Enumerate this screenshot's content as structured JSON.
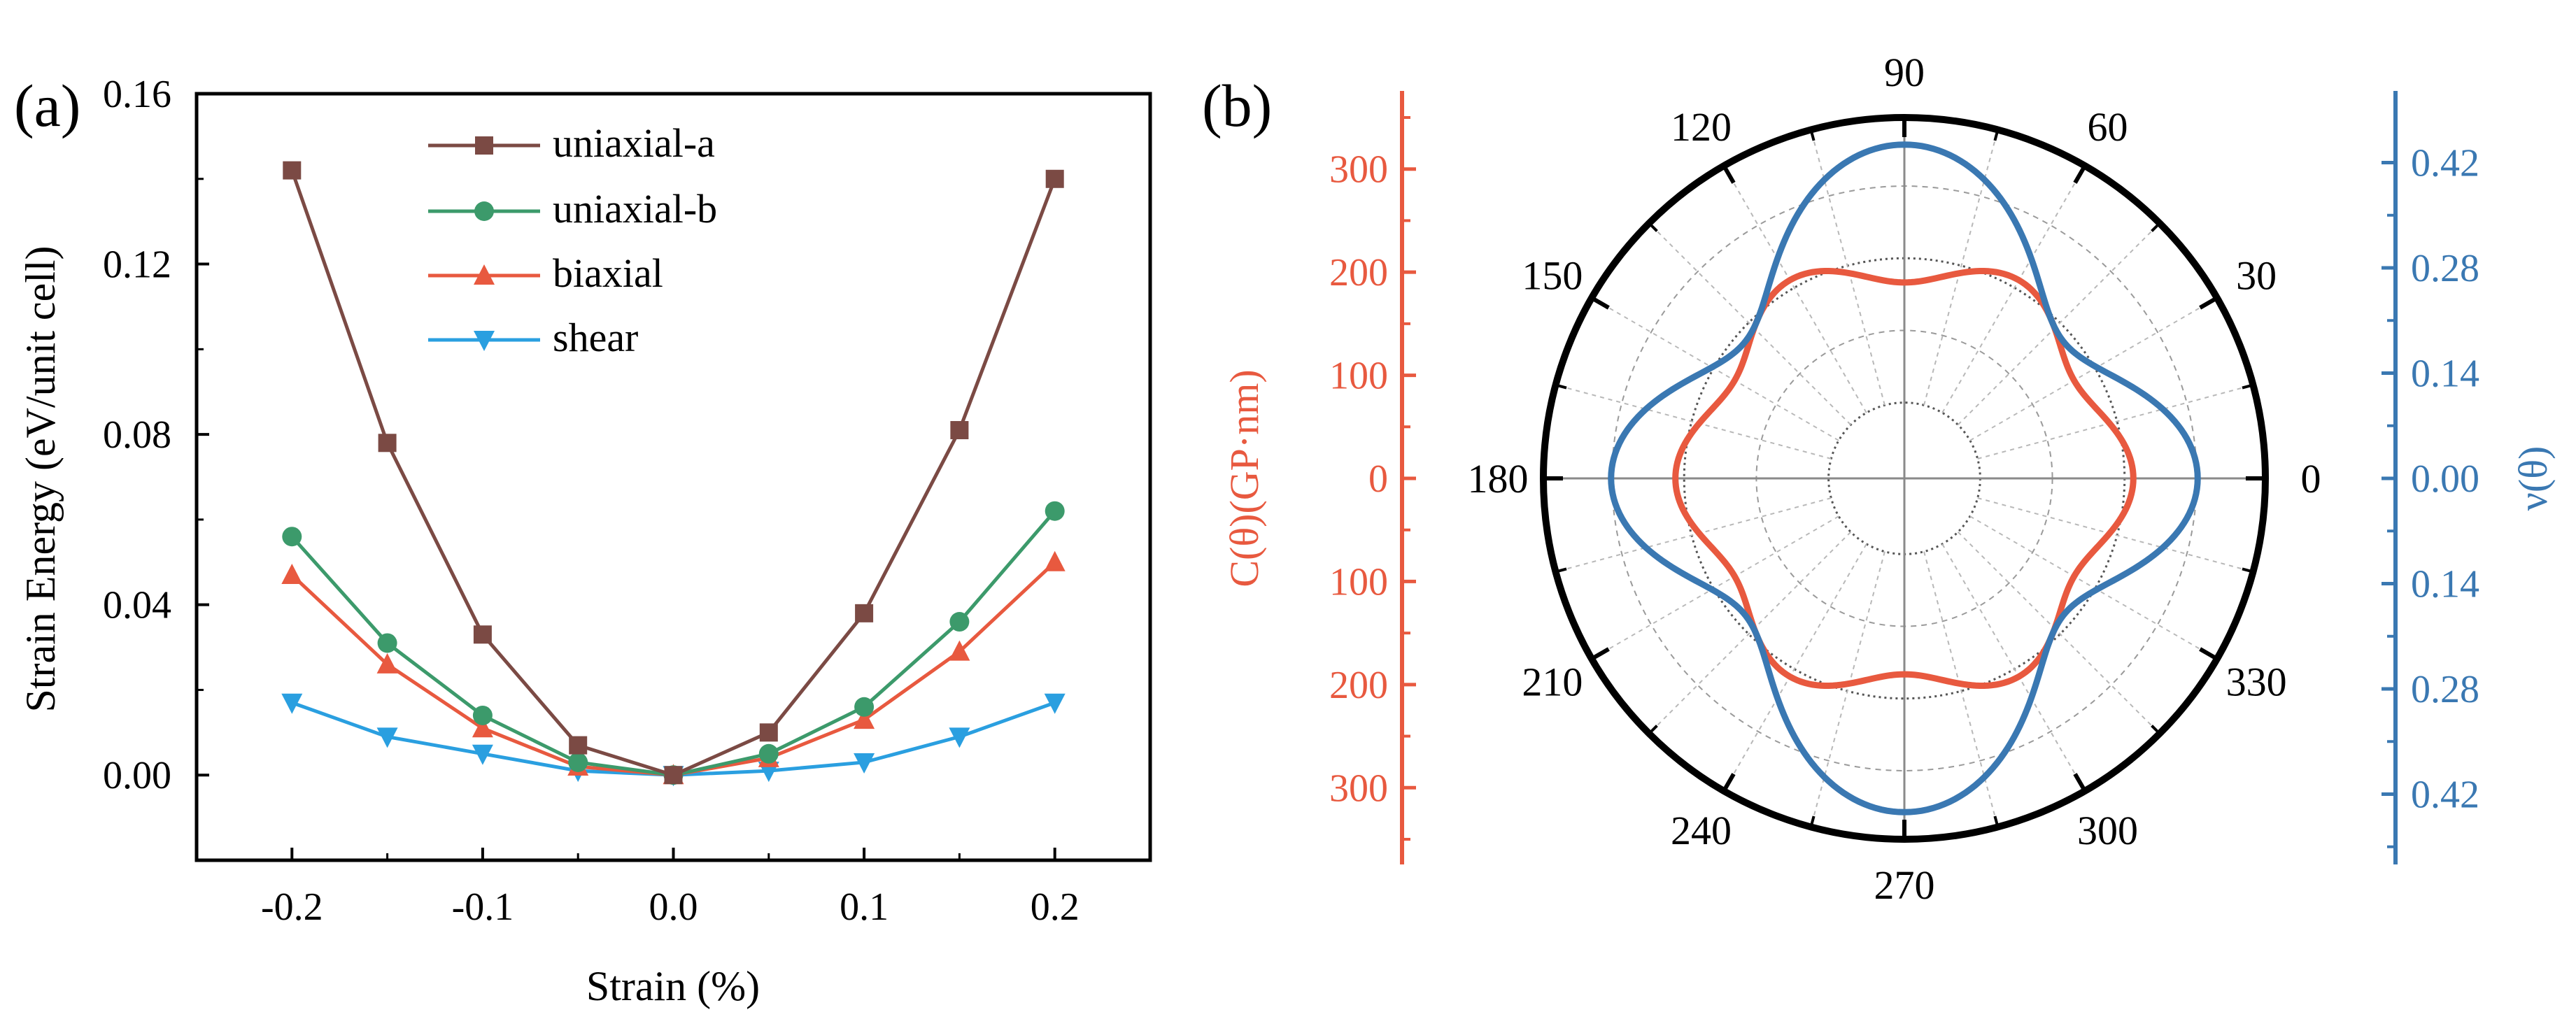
{
  "panel_a": {
    "label": "(a)",
    "chart_data": {
      "type": "line",
      "title": "",
      "xlabel": "Strain (%)",
      "ylabel": "Strain Energy (eV/unit cell)",
      "xlim": [
        -0.25,
        0.25
      ],
      "ylim": [
        -0.02,
        0.16
      ],
      "x": [
        -0.2,
        -0.15,
        -0.1,
        -0.05,
        0.0,
        0.05,
        0.1,
        0.15,
        0.2
      ],
      "xticks": [
        -0.2,
        -0.1,
        0.0,
        0.1,
        0.2
      ],
      "xtick_labels": [
        "-0.2",
        "-0.1",
        "0.0",
        "0.1",
        "0.2"
      ],
      "yticks": [
        0.0,
        0.04,
        0.08,
        0.12,
        0.16
      ],
      "ytick_labels": [
        "0.00",
        "0.04",
        "0.08",
        "0.12",
        "0.16"
      ],
      "legend_position": "top-center",
      "series": [
        {
          "name": "uniaxial-a",
          "marker": "square",
          "color": "#7b4a44",
          "values": [
            0.142,
            0.078,
            0.033,
            0.007,
            0.0,
            0.01,
            0.038,
            0.081,
            0.14
          ]
        },
        {
          "name": "uniaxial-b",
          "marker": "circle",
          "color": "#3c9a6b",
          "values": [
            0.056,
            0.031,
            0.014,
            0.003,
            0.0,
            0.005,
            0.016,
            0.036,
            0.062
          ]
        },
        {
          "name": "biaxial",
          "marker": "triangle-up",
          "color": "#e8593f",
          "values": [
            0.047,
            0.026,
            0.011,
            0.002,
            0.0,
            0.004,
            0.013,
            0.029,
            0.05
          ]
        },
        {
          "name": "shear",
          "marker": "triangle-down",
          "color": "#2a9fe0",
          "values": [
            0.017,
            0.009,
            0.005,
            0.001,
            0.0,
            0.001,
            0.003,
            0.009,
            0.017
          ]
        }
      ]
    }
  },
  "panel_b": {
    "label": "(b)",
    "chart_data": {
      "type": "polar",
      "angle_labels": [
        "0",
        "30",
        "60",
        "90",
        "120",
        "150",
        "180",
        "210",
        "240",
        "270",
        "300",
        "330"
      ],
      "left_axis": {
        "label": "C(θ)(GP·nm)",
        "color": "#e8593f",
        "range": [
          0,
          350
        ],
        "tick_labels_top": [
          "300",
          "200",
          "100",
          "0"
        ],
        "tick_labels_bottom": [
          "100",
          "200",
          "300"
        ]
      },
      "right_axis": {
        "label": "ν(θ)",
        "color": "#3a78b2",
        "range": [
          0,
          0.48
        ],
        "tick_labels_top": [
          "0.42",
          "0.28",
          "0.14",
          "0.00"
        ],
        "tick_labels_bottom": [
          "0.14",
          "0.28",
          "0.42"
        ]
      },
      "series": [
        {
          "name": "C(θ)",
          "color": "#e8593f",
          "axis": "left",
          "formula": "r(θ) = 206.0 + 16.0·cos(6θ)  (θ in degrees)",
          "mean": 206.0,
          "amp6": 16.0
        },
        {
          "name": "ν(θ)",
          "color": "#3a78b2",
          "axis": "right",
          "formula": "r(θ) = 0.35 − 0.032·cos(2θ) + 0.067·cos(4θ) + 0.005·cos(6θ)",
          "c0": 0.35,
          "c2": -0.032,
          "c4": 0.067,
          "c6": 0.005
        }
      ]
    }
  }
}
